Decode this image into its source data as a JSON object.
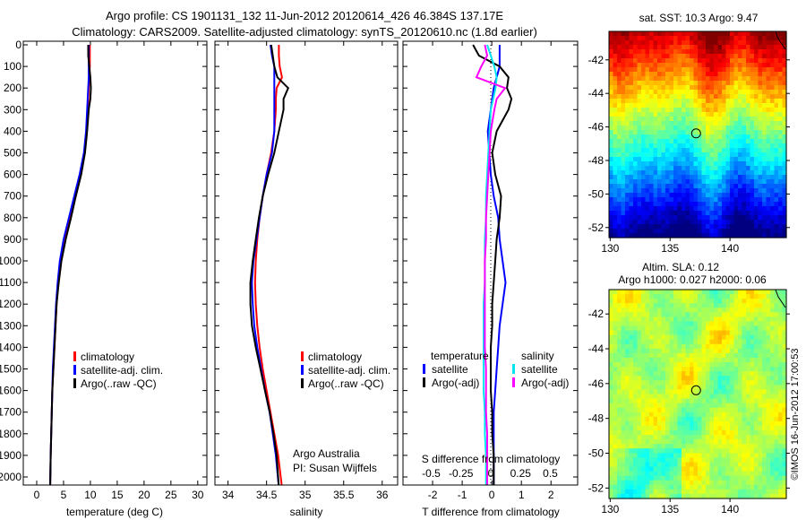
{
  "title": {
    "line1": "Argo profile: CS 1901131_132 11-Jun-2012 20120614_426 46.384S 137.17E",
    "line2": "Climatology: CARS2009. Satellite-adjusted climatology: synTS_20120610.nc (1.8d earlier)"
  },
  "depth_ticks": [
    0,
    100,
    200,
    300,
    400,
    500,
    600,
    700,
    800,
    900,
    1000,
    1100,
    1200,
    1300,
    1400,
    1500,
    1600,
    1700,
    1800,
    1900,
    2000
  ],
  "chart_data": [
    {
      "type": "line",
      "name": "temperature-profile",
      "xlabel": "temperature (deg C)",
      "ylabel": "depth",
      "xlim": [
        -2.5,
        31.7
      ],
      "ylim": [
        0,
        2064
      ],
      "y_inverted": true,
      "xticks": [
        0,
        5,
        10,
        15,
        20,
        25,
        30
      ],
      "depth": [
        0,
        50,
        100,
        150,
        200,
        250,
        300,
        400,
        500,
        600,
        700,
        800,
        900,
        1000,
        1100,
        1200,
        1300,
        1400,
        1500,
        1600,
        1700,
        1800,
        1900,
        2050
      ],
      "series": [
        {
          "name": "climatology",
          "color": "#ff0000",
          "values": [
            9.9,
            9.9,
            9.9,
            9.8,
            9.7,
            9.6,
            9.5,
            9.3,
            8.9,
            8.2,
            7.2,
            6.2,
            5.2,
            4.5,
            4.0,
            3.7,
            3.5,
            3.3,
            3.1,
            2.9,
            2.8,
            2.7,
            2.6,
            2.5
          ]
        },
        {
          "name": "satellite-adj. clim.",
          "color": "#0000ff",
          "values": [
            9.7,
            9.7,
            9.7,
            9.7,
            9.6,
            9.5,
            9.4,
            9.2,
            8.8,
            8.0,
            7.0,
            6.0,
            5.0,
            4.3,
            3.9,
            3.6,
            3.4,
            3.2,
            3.0,
            2.9,
            2.8,
            2.7,
            2.6,
            2.5
          ]
        },
        {
          "name": "Argo(..raw -QC)",
          "color": "#000000",
          "values": [
            9.6,
            9.6,
            9.8,
            10.0,
            10.1,
            10.0,
            9.7,
            9.4,
            9.0,
            8.3,
            7.3,
            6.4,
            5.4,
            4.6,
            4.1,
            3.7,
            3.5,
            3.3,
            3.1,
            2.9,
            2.8,
            2.7,
            2.6,
            2.5
          ]
        }
      ],
      "legend": [
        "climatology",
        "satellite-adj. clim.",
        "Argo(..raw -QC)"
      ]
    },
    {
      "type": "line",
      "name": "salinity-profile",
      "xlabel": "salinity",
      "xlim": [
        33.83,
        36.2
      ],
      "ylim": [
        0,
        2064
      ],
      "y_inverted": true,
      "xticks": [
        34,
        34.5,
        35,
        35.5,
        36
      ],
      "depth": [
        0,
        50,
        100,
        150,
        200,
        250,
        300,
        400,
        500,
        600,
        700,
        800,
        900,
        1000,
        1100,
        1200,
        1300,
        1400,
        1500,
        1600,
        1700,
        1800,
        1900,
        2050
      ],
      "series": [
        {
          "name": "climatology",
          "color": "#ff0000",
          "values": [
            34.66,
            34.66,
            34.67,
            34.7,
            34.63,
            34.62,
            34.62,
            34.6,
            34.56,
            34.5,
            34.45,
            34.41,
            34.38,
            34.36,
            34.35,
            34.36,
            34.38,
            34.41,
            34.45,
            34.5,
            34.55,
            34.6,
            34.65,
            34.7
          ]
        },
        {
          "name": "satellite-adj. clim.",
          "color": "#0000ff",
          "values": [
            34.55,
            34.57,
            34.6,
            34.6,
            34.6,
            34.6,
            34.6,
            34.6,
            34.57,
            34.5,
            34.45,
            34.41,
            34.37,
            34.33,
            34.31,
            34.32,
            34.34,
            34.38,
            34.43,
            34.48,
            34.54,
            34.58,
            34.62,
            34.66
          ]
        },
        {
          "name": "Argo(..raw -QC)",
          "color": "#000000",
          "values": [
            34.56,
            34.58,
            34.6,
            34.64,
            34.78,
            34.72,
            34.72,
            34.66,
            34.6,
            34.52,
            34.45,
            34.4,
            34.36,
            34.32,
            34.29,
            34.29,
            34.31,
            34.36,
            34.42,
            34.48,
            34.54,
            34.59,
            34.63,
            34.66
          ]
        }
      ],
      "legend": [
        "climatology",
        "satellite-adj. clim.",
        "Argo(..raw -QC)"
      ],
      "annotation": [
        "Argo Australia",
        "PI: Susan Wijffels"
      ]
    },
    {
      "type": "line",
      "name": "difference-profile",
      "xlabel": "T difference from climatology",
      "xlabel2": "S difference from climatology",
      "xlim": [
        -3.0,
        2.9
      ],
      "xlim2": [
        -0.5,
        0.5
      ],
      "ylim": [
        0,
        2064
      ],
      "y_inverted": true,
      "xticks": [
        -2,
        -1,
        0,
        1,
        2
      ],
      "xticks2": [
        "-0.5",
        "-0.25",
        "0",
        "0.25",
        "0.5"
      ],
      "xticks2_values": [
        -0.5,
        -0.25,
        0,
        0.25,
        0.5
      ],
      "depth": [
        0,
        50,
        100,
        150,
        200,
        250,
        300,
        400,
        500,
        600,
        700,
        800,
        900,
        1000,
        1100,
        1200,
        1300,
        1400,
        1500,
        1600,
        1700,
        1800,
        1900,
        2050
      ],
      "series": [
        {
          "name": "temperature satellite",
          "axis": "T",
          "color": "#0000ff",
          "values": [
            0.3,
            0.3,
            0.3,
            0.2,
            0.1,
            0.05,
            0.0,
            -0.1,
            -0.05,
            0.0,
            0.1,
            0.25,
            0.3,
            0.4,
            0.5,
            0.4,
            0.3,
            0.25,
            0.2,
            0.15,
            0.1,
            0.1,
            0.1,
            0.1
          ]
        },
        {
          "name": "temperature Argo(-adj)",
          "axis": "T",
          "color": "#000000",
          "values": [
            -0.6,
            -0.4,
            0.3,
            0.6,
            0.55,
            0.7,
            0.6,
            0.2,
            0.05,
            0.15,
            0.35,
            0.3,
            0.2,
            0.15,
            0.1,
            0.05,
            0.05,
            0.0,
            0.0,
            0.0,
            0.05,
            0.05,
            0.1,
            0.1
          ]
        },
        {
          "name": "salinity satellite",
          "axis": "S",
          "color": "#00e5ee",
          "values": [
            -0.03,
            0.0,
            0.03,
            0.05,
            0.04,
            0.02,
            0.0,
            -0.01,
            -0.02,
            -0.03,
            -0.04,
            -0.04,
            -0.05,
            -0.05,
            -0.05,
            -0.06,
            -0.06,
            -0.06,
            -0.06,
            -0.06,
            -0.05,
            -0.05,
            -0.04,
            -0.04
          ]
        },
        {
          "name": "salinity Argo(-adj)",
          "axis": "S",
          "color": "#ff00ff",
          "values": [
            -0.05,
            -0.03,
            -0.08,
            -0.12,
            0.12,
            0.05,
            0.03,
            0.0,
            -0.01,
            -0.02,
            -0.03,
            -0.04,
            -0.04,
            -0.05,
            -0.05,
            -0.05,
            -0.05,
            -0.05,
            -0.04,
            -0.04,
            -0.04,
            -0.03,
            -0.03,
            -0.03
          ]
        }
      ],
      "legend": {
        "temperature_header": "temperature",
        "salinity_header": "salinity",
        "items": [
          "satellite",
          "Argo(-adj)",
          "satellite",
          "Argo(-adj)"
        ]
      }
    }
  ],
  "maps": {
    "sst": {
      "title": "sat. SST: 10.3 Argo: 9.47",
      "lon_ticks": [
        130,
        135,
        140
      ],
      "lat_ticks": [
        -42,
        -44,
        -46,
        -48,
        -50,
        -52
      ],
      "lon_range": [
        129.9,
        144.7
      ],
      "lat_range": [
        -52.6,
        -40.3
      ]
    },
    "sla": {
      "title1": "Altim. SLA: 0.12",
      "title2": "Argo h1000: 0.027 h2000: 0.06",
      "lon_ticks": [
        130,
        135,
        140
      ],
      "lat_ticks": [
        -42,
        -44,
        -46,
        -48,
        -50,
        -52
      ],
      "lon_range": [
        129.9,
        144.7
      ],
      "lat_range": [
        -52.6,
        -40.6
      ]
    },
    "float_position": {
      "lon": 137.17,
      "lat": -46.384
    }
  },
  "stamp": "©IMOS 16-Jun-2012 17:00:53"
}
